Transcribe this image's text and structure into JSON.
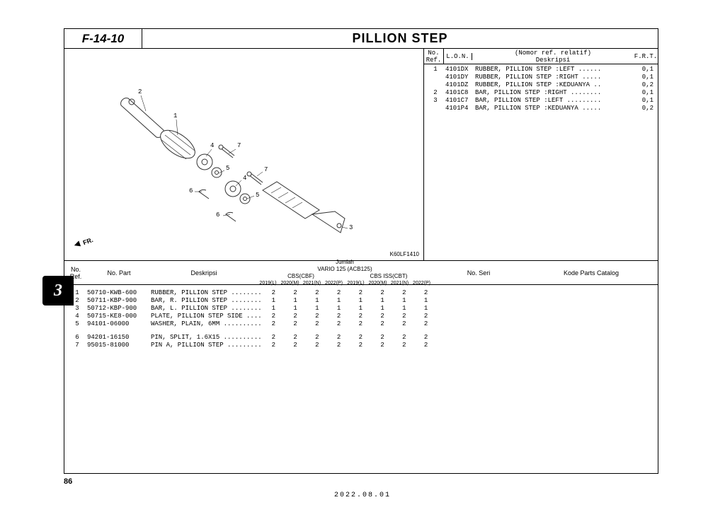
{
  "header": {
    "code": "F-14-10",
    "title": "PILLION STEP"
  },
  "diagram": {
    "code": "K60LF1410",
    "fr_label": "FR.",
    "callouts": [
      "1",
      "2",
      "3",
      "4",
      "5",
      "6",
      "7",
      "4",
      "5",
      "6",
      "7"
    ]
  },
  "ref_table": {
    "head": {
      "noref": "No. Ref.",
      "lon": "L.O.N.",
      "nomor": "(Nomor ref. relatif)",
      "desk": "Deskripsi",
      "frt": "F.R.T."
    },
    "rows": [
      {
        "no": "1",
        "lon": "4101DX",
        "desc": "RUBBER, PILLION STEP :LEFT ......",
        "frt": "0,1"
      },
      {
        "no": "",
        "lon": "4101DY",
        "desc": "RUBBER, PILLION STEP :RIGHT .....",
        "frt": "0,1"
      },
      {
        "no": "",
        "lon": "4101DZ",
        "desc": "RUBBER, PILLION STEP :KEDUANYA ..",
        "frt": "0,2"
      },
      {
        "no": "2",
        "lon": "4101C8",
        "desc": "BAR, PILLION STEP :RIGHT ........",
        "frt": "0,1"
      },
      {
        "no": "3",
        "lon": "4101C7",
        "desc": "BAR, PILLION STEP :LEFT .........",
        "frt": "0,1"
      },
      {
        "no": "",
        "lon": "4101P4",
        "desc": "BAR, PILLION STEP :KEDUANYA .....",
        "frt": "0,2"
      }
    ]
  },
  "parts_table": {
    "head": {
      "noref": "No. Ref.",
      "nopart": "No. Part",
      "desk": "Deskripsi",
      "jumlah": "Jumlah",
      "model": "VARIO 125 (ACB125)",
      "var_a": "CBS(CBF)",
      "var_b": "CBS ISS(CBT)",
      "years": [
        "2019(L)",
        "2020(M)",
        "2021(N)",
        "2022(P)",
        "2019(L)",
        "2020(M)",
        "2021(N)",
        "2022(P)"
      ],
      "noseri": "No. Seri",
      "kode": "Kode Parts Catalog"
    },
    "rows": [
      {
        "no": "1",
        "part": "50710-KWB-600",
        "desc": "RUBBER, PILLION STEP .........",
        "q": [
          "2",
          "2",
          "2",
          "2",
          "2",
          "2",
          "2",
          "2"
        ]
      },
      {
        "no": "2",
        "part": "50711-KBP-900",
        "desc": "BAR, R. PILLION STEP .........",
        "q": [
          "1",
          "1",
          "1",
          "1",
          "1",
          "1",
          "1",
          "1"
        ]
      },
      {
        "no": "3",
        "part": "50712-KBP-900",
        "desc": "BAR, L. PILLION STEP .........",
        "q": [
          "1",
          "1",
          "1",
          "1",
          "1",
          "1",
          "1",
          "1"
        ]
      },
      {
        "no": "4",
        "part": "50715-KE8-000",
        "desc": "PLATE, PILLION STEP SIDE .....",
        "q": [
          "2",
          "2",
          "2",
          "2",
          "2",
          "2",
          "2",
          "2"
        ]
      },
      {
        "no": "5",
        "part": "94101-06000",
        "desc": "WASHER, PLAIN, 6MM ...........",
        "q": [
          "2",
          "2",
          "2",
          "2",
          "2",
          "2",
          "2",
          "2"
        ]
      }
    ],
    "rows2": [
      {
        "no": "6",
        "part": "94201-16150",
        "desc": "PIN, SPLIT, 1.6X15 ...........",
        "q": [
          "2",
          "2",
          "2",
          "2",
          "2",
          "2",
          "2",
          "2"
        ]
      },
      {
        "no": "7",
        "part": "95015-81000",
        "desc": "PIN A, PILLION STEP ..........",
        "q": [
          "2",
          "2",
          "2",
          "2",
          "2",
          "2",
          "2",
          "2"
        ]
      }
    ]
  },
  "page": {
    "tab": "3",
    "num": "86",
    "date": "2022.08.01"
  }
}
